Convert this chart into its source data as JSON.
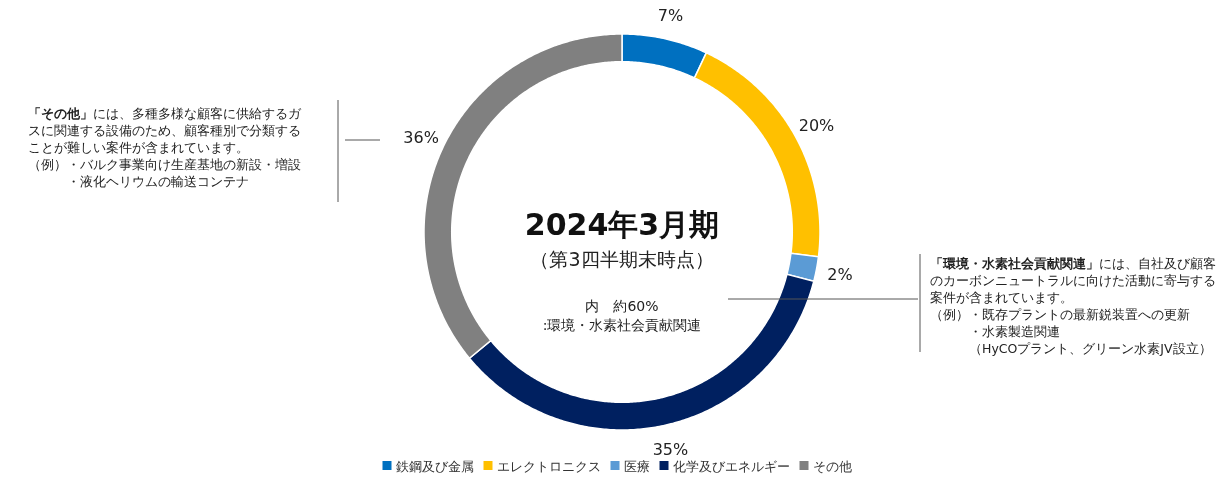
{
  "chart_data": {
    "type": "donut",
    "title": "2024年3月期",
    "subtitle": "（第3四半期末時点）",
    "categories": [
      "鉄鋼及び金属",
      "エレクトロニクス",
      "医療",
      "化学及びエネルギー",
      "その他"
    ],
    "values": [
      7,
      20,
      2,
      35,
      36
    ],
    "colors": [
      "#0070c0",
      "#ffc000",
      "#5b9bd5",
      "#002060",
      "#808080"
    ],
    "value_labels": [
      "7%",
      "20%",
      "2%",
      "35%",
      "36%"
    ],
    "legend": "bottom",
    "annotations": [
      "内　約60%\n:環境・水素社会貢献関連",
      "「その他」には、多種多様な顧客に供給するガスに関連する設備のため、顧客種別で分類することが難しい案件が含まれています。",
      "（例）・バルク事業向け生産基地の新設・増設",
      "　　　・液化ヘリウムの輸送コンテナ",
      "「環境・水素社会貢献関連」には、自社及び顧客のカーボンニュートラルに向けた活動に寄与する案件が含まれています。",
      "（例）・既存プラントの最新鋭装置への更新",
      "　　　・水素製造関連",
      "　　　（HyCOプラント、グリーン水素JV設立）"
    ]
  }
}
